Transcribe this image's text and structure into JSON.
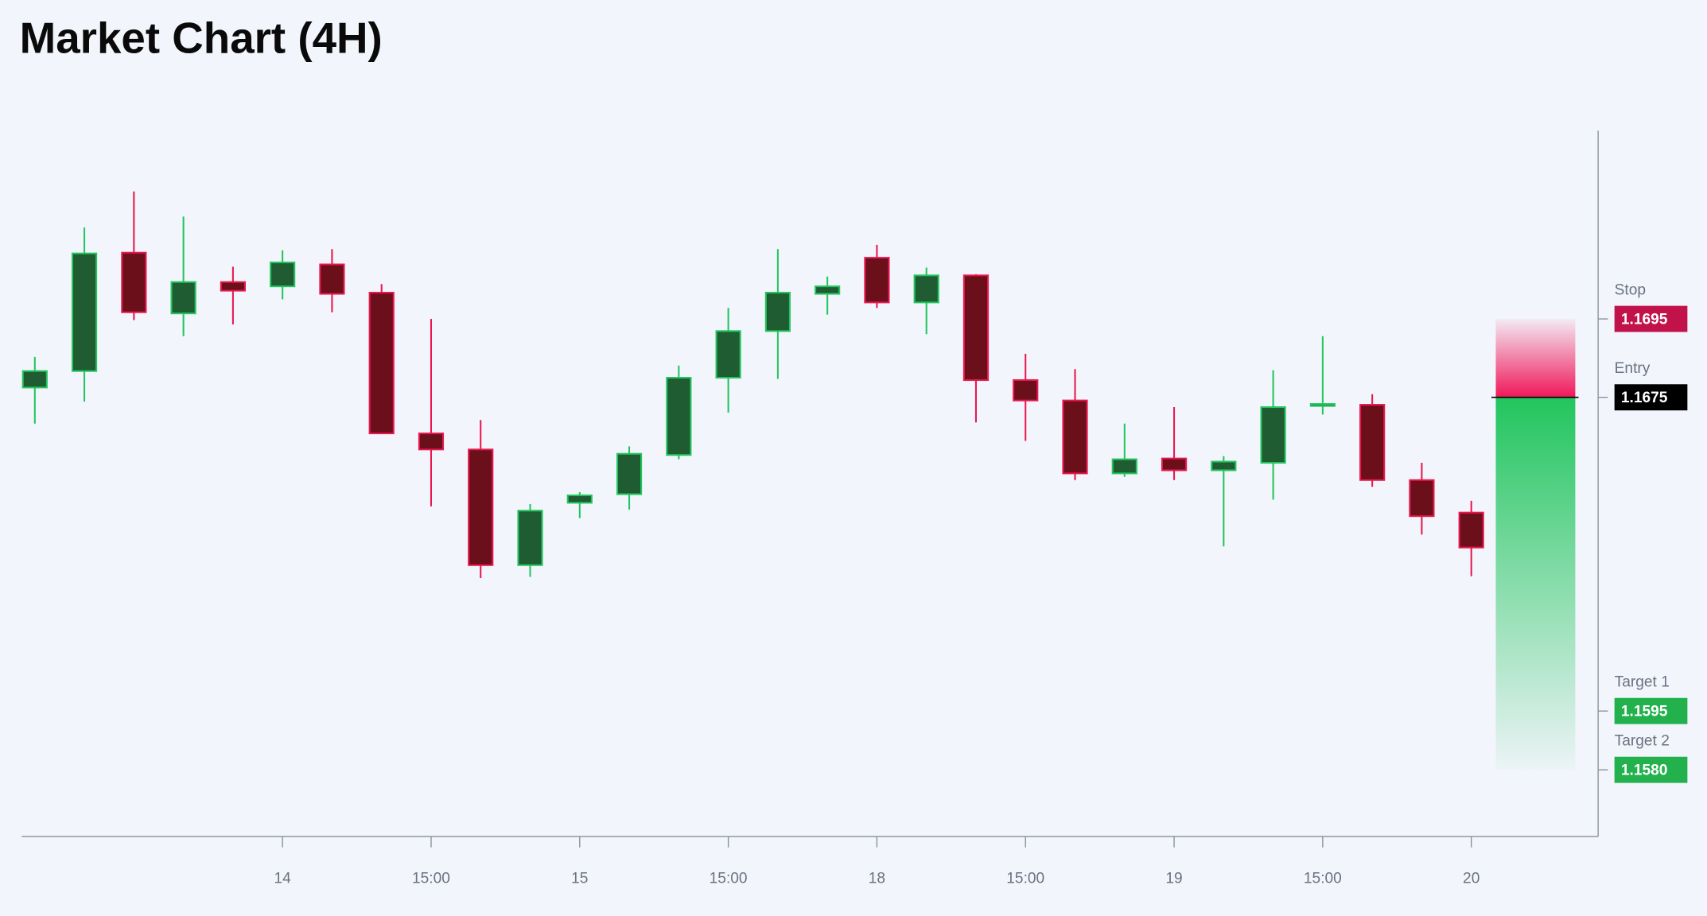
{
  "chart_data": {
    "type": "candlestick",
    "title": "Market Chart (4H)",
    "categories": [
      null,
      null,
      null,
      null,
      null,
      "14",
      null,
      null,
      "15:00",
      null,
      null,
      "15",
      null,
      null,
      "15:00",
      null,
      null,
      "18",
      null,
      null,
      "15:00",
      null,
      null,
      "19",
      null,
      null,
      "15:00",
      null,
      null,
      "20"
    ],
    "open": [
      1.16775,
      1.16817,
      1.17119,
      1.16964,
      1.17044,
      1.17033,
      1.17089,
      1.17017,
      1.16658,
      1.16617,
      1.16322,
      1.16481,
      1.16503,
      1.16603,
      1.168,
      1.16919,
      1.17014,
      1.17106,
      1.16992,
      1.17061,
      1.16794,
      1.16742,
      1.16556,
      1.16594,
      1.16564,
      1.16583,
      1.16728,
      1.16731,
      1.16539,
      1.16456
    ],
    "high": [
      1.16853,
      1.17183,
      1.17275,
      1.17211,
      1.17083,
      1.17125,
      1.17128,
      1.17039,
      1.1695,
      1.16692,
      1.16478,
      1.16508,
      1.16625,
      1.16831,
      1.16978,
      1.17128,
      1.17058,
      1.17139,
      1.17081,
      1.17064,
      1.16861,
      1.16822,
      1.16683,
      1.16725,
      1.166,
      1.16819,
      1.16906,
      1.16758,
      1.16583,
      1.16486
    ],
    "low": [
      1.16683,
      1.16739,
      1.16947,
      1.16906,
      1.16936,
      1.17,
      1.16967,
      1.16658,
      1.16472,
      1.16289,
      1.16292,
      1.16442,
      1.16464,
      1.16592,
      1.16711,
      1.16797,
      1.16961,
      1.16978,
      1.16911,
      1.16686,
      1.16639,
      1.16539,
      1.16547,
      1.16539,
      1.1637,
      1.16489,
      1.16706,
      1.16522,
      1.164,
      1.16294
    ],
    "close": [
      1.16817,
      1.17117,
      1.16967,
      1.17044,
      1.17022,
      1.17094,
      1.17014,
      1.16658,
      1.16617,
      1.16322,
      1.16461,
      1.165,
      1.16606,
      1.168,
      1.16919,
      1.17017,
      1.17033,
      1.16992,
      1.17061,
      1.16794,
      1.16742,
      1.16556,
      1.16592,
      1.16564,
      1.16586,
      1.16725,
      1.16733,
      1.16539,
      1.16447,
      1.16367
    ],
    "up_color": "#1f5c32",
    "up_edge": "#22c55e",
    "down_color": "#6b0f1a",
    "down_edge": "#e8174f",
    "ylim": [
      1.1563,
      1.1743
    ],
    "levels": {
      "names": [
        "Stop",
        "Entry",
        "Target 1",
        "Target 2"
      ],
      "values": [
        1.1695,
        1.1675,
        1.1595,
        1.158
      ],
      "value_labels": [
        "1.1695",
        "1.1675",
        "1.1595",
        "1.1580"
      ],
      "colors": [
        "#c2124a",
        "#000000",
        "#22b14c",
        "#22b14c"
      ]
    }
  }
}
